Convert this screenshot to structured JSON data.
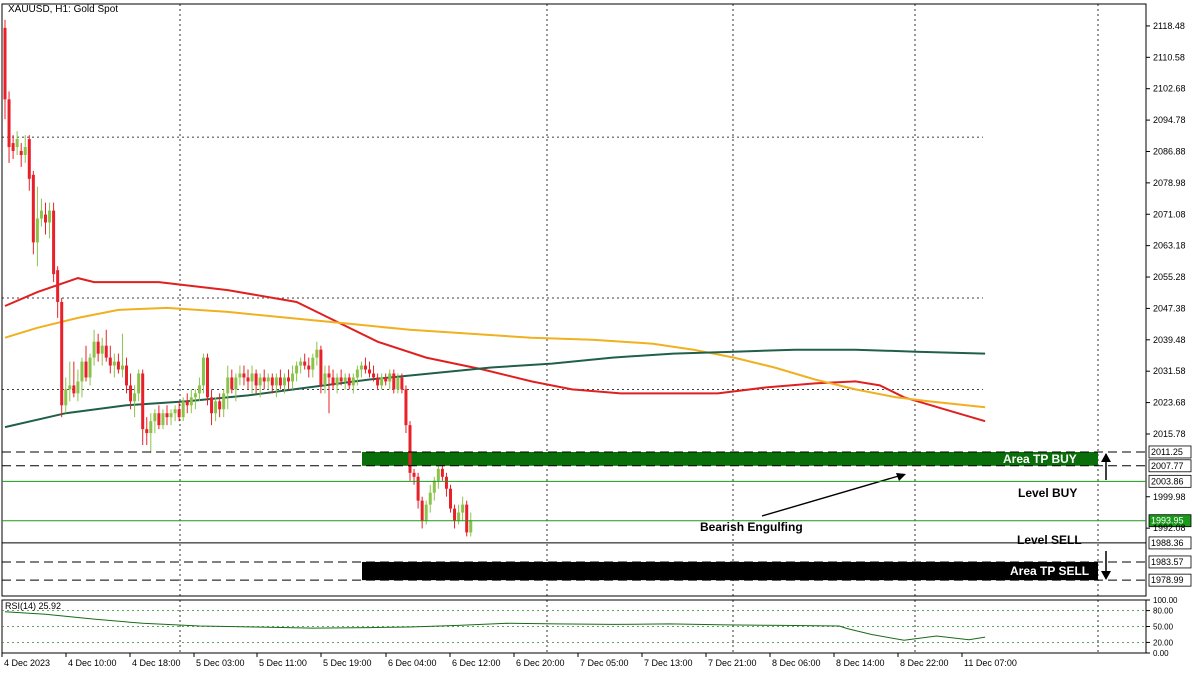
{
  "header": {
    "title": "XAUUSD, H1:  Gold Spot"
  },
  "chart_data": {
    "type": "candlestick",
    "symbol": "XAUUSD",
    "timeframe": "H1",
    "title": "XAUUSD, H1:  Gold Spot",
    "ylim": [
      1975,
      2124
    ],
    "y_ticks": [
      "2118.48",
      "2110.58",
      "2102.68",
      "2094.78",
      "2086.88",
      "2078.98",
      "2071.08",
      "2063.18",
      "2055.28",
      "2047.38",
      "2039.48",
      "2031.58",
      "2023.68",
      "2015.78",
      "1999.98",
      "1992.08"
    ],
    "x_tick_labels": [
      "4 Dec 2023",
      "4 Dec 10:00",
      "4 Dec 18:00",
      "5 Dec 03:00",
      "5 Dec 11:00",
      "5 Dec 19:00",
      "6 Dec 04:00",
      "6 Dec 12:00",
      "6 Dec 20:00",
      "7 Dec 05:00",
      "7 Dec 13:00",
      "7 Dec 21:00",
      "8 Dec 06:00",
      "8 Dec 14:00",
      "8 Dec 22:00",
      "11 Dec 07:00"
    ],
    "candles": [
      [
        2118,
        2120,
        2095,
        2100
      ],
      [
        2100,
        2102,
        2084,
        2088
      ],
      [
        2089,
        2091,
        2085,
        2087
      ],
      [
        2088,
        2092,
        2086,
        2090
      ],
      [
        2087,
        2089,
        2083,
        2086
      ],
      [
        2086,
        2091,
        2084,
        2088
      ],
      [
        2090,
        2091,
        2077,
        2080
      ],
      [
        2081,
        2082,
        2061,
        2064
      ],
      [
        2064,
        2078,
        2058,
        2070
      ],
      [
        2070,
        2075,
        2068,
        2072
      ],
      [
        2071,
        2074,
        2066,
        2069
      ],
      [
        2069,
        2074,
        2065,
        2072
      ],
      [
        2072,
        2074,
        2054,
        2056
      ],
      [
        2057,
        2058,
        2045,
        2049
      ],
      [
        2049,
        2050,
        2020,
        2023
      ],
      [
        2023,
        2030,
        2021,
        2027
      ],
      [
        2027,
        2034,
        2024,
        2028
      ],
      [
        2028,
        2034,
        2025,
        2026
      ],
      [
        2026,
        2032,
        2024,
        2029
      ],
      [
        2029,
        2035,
        2025,
        2034
      ],
      [
        2034,
        2038,
        2029,
        2030
      ],
      [
        2030,
        2036,
        2028,
        2035
      ],
      [
        2035,
        2042,
        2033,
        2039
      ],
      [
        2039,
        2041,
        2034,
        2036
      ],
      [
        2036,
        2040,
        2033,
        2038
      ],
      [
        2038,
        2042,
        2034,
        2035
      ],
      [
        2035,
        2038,
        2031,
        2033
      ],
      [
        2033,
        2036,
        2030,
        2034
      ],
      [
        2034,
        2036,
        2031,
        2032
      ],
      [
        2032,
        2041,
        2030,
        2033
      ],
      [
        2033,
        2035,
        2026,
        2028
      ],
      [
        2028,
        2031,
        2022,
        2024
      ],
      [
        2024,
        2028,
        2020,
        2026
      ],
      [
        2026,
        2032,
        2024,
        2031
      ],
      [
        2031,
        2032,
        2013,
        2017
      ],
      [
        2017,
        2020,
        2013,
        2016
      ],
      [
        2016,
        2021,
        2011,
        2019
      ],
      [
        2019,
        2022,
        2016,
        2021
      ],
      [
        2021,
        2023,
        2017,
        2018
      ],
      [
        2018,
        2022,
        2017,
        2021
      ],
      [
        2021,
        2023,
        2018,
        2020
      ],
      [
        2020,
        2022,
        2018,
        2021
      ],
      [
        2021,
        2023,
        2019,
        2022
      ],
      [
        2022,
        2024,
        2019,
        2020
      ],
      [
        2020,
        2025,
        2019,
        2024
      ],
      [
        2024,
        2026,
        2021,
        2023
      ],
      [
        2023,
        2027,
        2021,
        2025
      ],
      [
        2025,
        2027,
        2022,
        2026
      ],
      [
        2026,
        2030,
        2024,
        2028
      ],
      [
        2028,
        2036,
        2026,
        2035
      ],
      [
        2035,
        2036,
        2023,
        2025
      ],
      [
        2025,
        2027,
        2018,
        2021
      ],
      [
        2021,
        2025,
        2019,
        2024
      ],
      [
        2024,
        2026,
        2020,
        2022
      ],
      [
        2022,
        2027,
        2020,
        2026
      ],
      [
        2026,
        2033,
        2022,
        2030
      ],
      [
        2030,
        2032,
        2026,
        2027
      ],
      [
        2027,
        2031,
        2024,
        2030
      ],
      [
        2030,
        2033,
        2028,
        2031
      ],
      [
        2031,
        2033,
        2028,
        2030
      ],
      [
        2030,
        2032,
        2027,
        2029
      ],
      [
        2029,
        2033,
        2026,
        2031
      ],
      [
        2031,
        2032,
        2026,
        2028
      ],
      [
        2028,
        2031,
        2025,
        2030
      ],
      [
        2030,
        2032,
        2027,
        2029
      ],
      [
        2029,
        2031,
        2027,
        2030
      ],
      [
        2030,
        2031,
        2026,
        2028
      ],
      [
        2028,
        2031,
        2025,
        2030
      ],
      [
        2030,
        2032,
        2027,
        2028
      ],
      [
        2028,
        2031,
        2026,
        2030
      ],
      [
        2030,
        2032,
        2027,
        2029
      ],
      [
        2029,
        2033,
        2027,
        2031
      ],
      [
        2031,
        2034,
        2029,
        2033
      ],
      [
        2033,
        2035,
        2031,
        2034
      ],
      [
        2034,
        2036,
        2032,
        2033
      ],
      [
        2033,
        2035,
        2030,
        2032
      ],
      [
        2032,
        2036,
        2030,
        2035
      ],
      [
        2035,
        2039,
        2033,
        2037
      ],
      [
        2037,
        2038,
        2026,
        2028
      ],
      [
        2028,
        2033,
        2026,
        2031
      ],
      [
        2031,
        2033,
        2021,
        2030
      ],
      [
        2030,
        2032,
        2027,
        2028
      ],
      [
        2028,
        2031,
        2026,
        2030
      ],
      [
        2030,
        2032,
        2028,
        2029
      ],
      [
        2029,
        2031,
        2027,
        2030
      ],
      [
        2030,
        2031,
        2027,
        2028
      ],
      [
        2028,
        2031,
        2026,
        2030
      ],
      [
        2030,
        2033,
        2028,
        2032
      ],
      [
        2032,
        2034,
        2030,
        2033
      ],
      [
        2033,
        2035,
        2031,
        2032
      ],
      [
        2032,
        2034,
        2030,
        2031
      ],
      [
        2031,
        2033,
        2029,
        2030
      ],
      [
        2030,
        2031,
        2027,
        2028
      ],
      [
        2028,
        2031,
        2027,
        2030
      ],
      [
        2030,
        2031,
        2028,
        2029
      ],
      [
        2029,
        2032,
        2027,
        2031
      ],
      [
        2031,
        2032,
        2026,
        2027
      ],
      [
        2027,
        2031,
        2026,
        2030
      ],
      [
        2030,
        2031,
        2026,
        2027
      ],
      [
        2027,
        2028,
        2016,
        2018
      ],
      [
        2018,
        2019,
        2004,
        2006
      ],
      [
        2006,
        2007,
        2003,
        2005
      ],
      [
        2005,
        2006,
        1997,
        1999
      ],
      [
        1999,
        2000,
        1992,
        1994
      ],
      [
        1994,
        1999,
        1993,
        1998
      ],
      [
        1998,
        2003,
        1996,
        2001
      ],
      [
        2001,
        2005,
        1999,
        2004
      ],
      [
        2004,
        2008,
        2002,
        2007
      ],
      [
        2007,
        2008,
        2004,
        2005
      ],
      [
        2005,
        2006,
        2000,
        2002
      ],
      [
        2002,
        2003,
        1996,
        1997
      ],
      [
        1997,
        1998,
        1992,
        1994
      ],
      [
        1994,
        1998,
        1993,
        1996
      ],
      [
        1996,
        2000,
        1994,
        1998
      ],
      [
        1998,
        1999,
        1990,
        1991
      ],
      [
        1991,
        1996,
        1990,
        1994
      ]
    ],
    "moving_averages": [
      {
        "color": "#e02020",
        "points": [
          [
            0,
            2048
          ],
          [
            8,
            2051.5
          ],
          [
            18,
            2055
          ],
          [
            22,
            2054
          ],
          [
            38,
            2054
          ],
          [
            55,
            2052
          ],
          [
            72,
            2049
          ],
          [
            80,
            2045
          ],
          [
            92,
            2039
          ],
          [
            104,
            2035
          ],
          [
            118,
            2032
          ],
          [
            130,
            2029
          ],
          [
            140,
            2027
          ],
          [
            152,
            2026
          ],
          [
            164,
            2026
          ],
          [
            176,
            2026
          ],
          [
            188,
            2027.5
          ],
          [
            200,
            2028.5
          ],
          [
            210,
            2029
          ],
          [
            216,
            2028
          ],
          [
            222,
            2025
          ],
          [
            232,
            2022
          ],
          [
            242,
            2019
          ]
        ]
      },
      {
        "color": "#f0b020",
        "points": [
          [
            0,
            2040
          ],
          [
            8,
            2042.5
          ],
          [
            18,
            2045
          ],
          [
            28,
            2047
          ],
          [
            40,
            2047.5
          ],
          [
            55,
            2046.5
          ],
          [
            70,
            2045
          ],
          [
            85,
            2043.5
          ],
          [
            100,
            2042
          ],
          [
            115,
            2041
          ],
          [
            130,
            2040
          ],
          [
            145,
            2039.5
          ],
          [
            160,
            2038.5
          ],
          [
            170,
            2037
          ],
          [
            180,
            2035
          ],
          [
            190,
            2032.5
          ],
          [
            200,
            2029.5
          ],
          [
            210,
            2027
          ],
          [
            220,
            2025
          ],
          [
            228,
            2024
          ],
          [
            242,
            2022.5
          ]
        ]
      },
      {
        "color": "#206048",
        "points": [
          [
            0,
            2017.5
          ],
          [
            15,
            2021
          ],
          [
            30,
            2023
          ],
          [
            45,
            2024
          ],
          [
            60,
            2025.5
          ],
          [
            75,
            2027.5
          ],
          [
            90,
            2029.5
          ],
          [
            105,
            2031
          ],
          [
            120,
            2032.5
          ],
          [
            135,
            2033.5
          ],
          [
            150,
            2035
          ],
          [
            165,
            2036
          ],
          [
            180,
            2036.5
          ],
          [
            195,
            2037
          ],
          [
            210,
            2037
          ],
          [
            225,
            2036.5
          ],
          [
            242,
            2036
          ]
        ]
      }
    ],
    "levels": [
      {
        "price_label": "2011.25",
        "style": "dashed"
      },
      {
        "price_label": "2007.77",
        "style": "dashed"
      },
      {
        "price_label": "2003.86",
        "style": "solid-green"
      },
      {
        "price_label": "1993.95",
        "style": "solid-green-current"
      },
      {
        "price_label": "1988.36",
        "style": "solid-black"
      },
      {
        "price_label": "1983.57",
        "style": "dashed"
      },
      {
        "price_label": "1978.99",
        "style": "dashed"
      }
    ],
    "zones": [
      {
        "label": "Area TP BUY",
        "color": "#0a6e0a",
        "text_color": "#ffffff"
      },
      {
        "label": "Area TP SELL",
        "color": "#000000",
        "text_color": "#ffffff"
      }
    ],
    "annotations": [
      "Level BUY",
      "Level SELL",
      "Bearish Engulfing"
    ],
    "rsi": {
      "label": "RSI(14) 25.92",
      "value": 25.92,
      "ylim": [
        0,
        100
      ],
      "y_ticks": [
        "100.00",
        "80.00",
        "50.00",
        "20.00",
        "0.00"
      ],
      "points": [
        [
          0,
          78
        ],
        [
          10,
          73
        ],
        [
          22,
          64
        ],
        [
          34,
          56
        ],
        [
          48,
          51
        ],
        [
          62,
          49
        ],
        [
          76,
          47
        ],
        [
          90,
          48
        ],
        [
          100,
          49
        ],
        [
          112,
          52
        ],
        [
          124,
          56
        ],
        [
          136,
          55
        ],
        [
          150,
          54
        ],
        [
          164,
          55
        ],
        [
          178,
          53
        ],
        [
          192,
          52
        ],
        [
          206,
          51
        ],
        [
          208,
          46
        ],
        [
          214,
          35
        ],
        [
          222,
          24
        ],
        [
          230,
          32
        ],
        [
          238,
          25
        ],
        [
          242,
          30
        ]
      ]
    }
  }
}
